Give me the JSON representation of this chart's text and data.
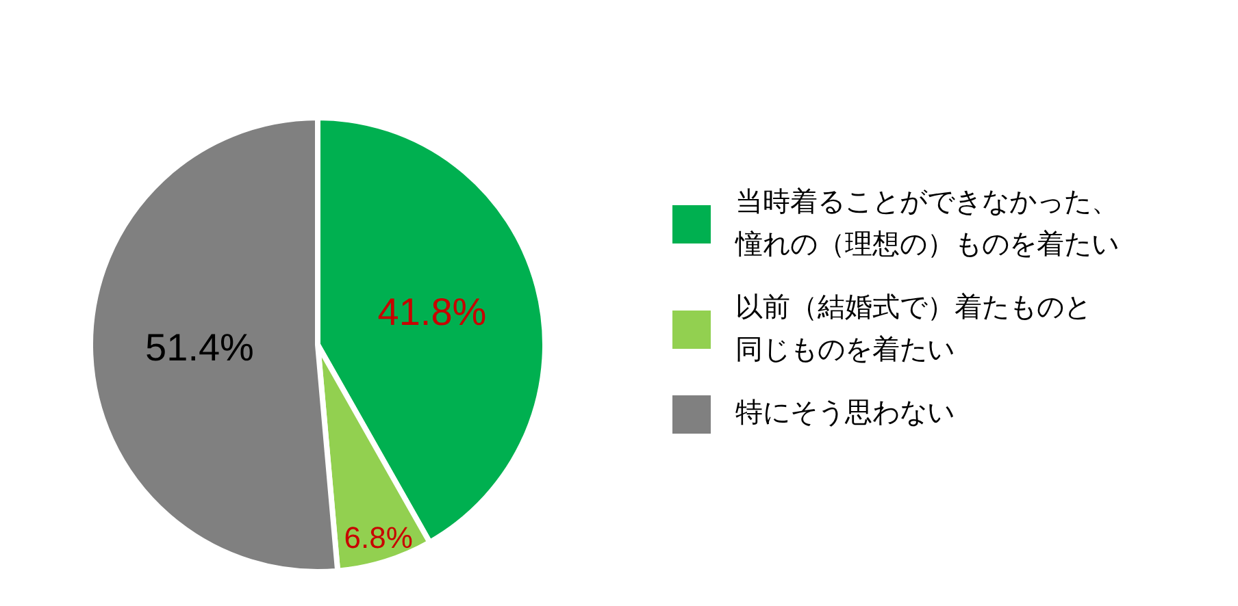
{
  "chart_data": {
    "type": "pie",
    "categories": [
      "当時着ることができなかった、憧れの（理想の）ものを着たい",
      "以前（結婚式で）着たものと同じものを着たい",
      "特にそう思わない"
    ],
    "values": [
      41.8,
      6.8,
      51.4
    ],
    "colors": [
      "#00b050",
      "#92d050",
      "#808080"
    ],
    "value_labels": [
      "41.8%",
      "6.8%",
      "51.4%"
    ],
    "legend": "right"
  }
}
